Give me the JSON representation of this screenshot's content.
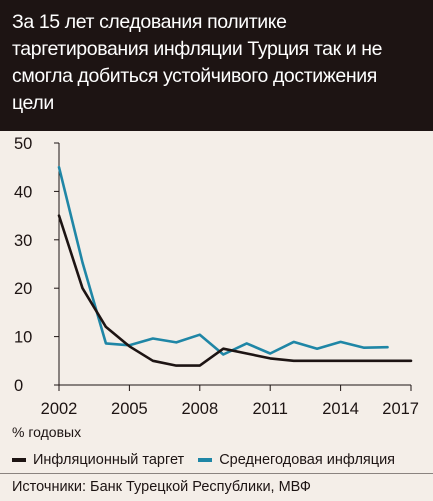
{
  "title": "За 15 лет следования политике таргетирования инфляции Турция так и не смогла добиться устойчивого достижения цели",
  "unit_label": "% годовых",
  "legend": [
    {
      "label": "Инфляционный таргет",
      "color": "#1d1413"
    },
    {
      "label": "Среднегодовая инфляция",
      "color": "#1f86a6"
    }
  ],
  "source": "Источники: Банк Турецкой Республики, МВФ",
  "chart_data": {
    "type": "line",
    "x_ticks": [
      "2002",
      "2005",
      "2008",
      "2011",
      "2014",
      "2017"
    ],
    "y_ticks": [
      "0",
      "10",
      "20",
      "30",
      "40",
      "50"
    ],
    "xlim": [
      2002,
      2017
    ],
    "ylim": [
      0,
      50
    ],
    "grid": false,
    "legend_position": "bottom",
    "series": [
      {
        "name": "Инфляционный таргет",
        "color": "#1d1413",
        "x": [
          2002,
          2003,
          2004,
          2005,
          2006,
          2007,
          2008,
          2009,
          2010,
          2011,
          2012,
          2013,
          2014,
          2015,
          2016,
          2017
        ],
        "y": [
          35,
          20,
          12,
          8,
          5,
          4,
          4,
          7.5,
          6.5,
          5.5,
          5,
          5,
          5,
          5,
          5,
          5
        ]
      },
      {
        "name": "Среднегодовая инфляция",
        "color": "#1f86a6",
        "x": [
          2002,
          2003,
          2004,
          2005,
          2006,
          2007,
          2008,
          2009,
          2010,
          2011,
          2012,
          2013,
          2014,
          2015,
          2016
        ],
        "y": [
          45,
          25.3,
          8.6,
          8.2,
          9.6,
          8.8,
          10.4,
          6.3,
          8.6,
          6.5,
          8.9,
          7.5,
          8.9,
          7.7,
          7.8
        ]
      }
    ]
  }
}
